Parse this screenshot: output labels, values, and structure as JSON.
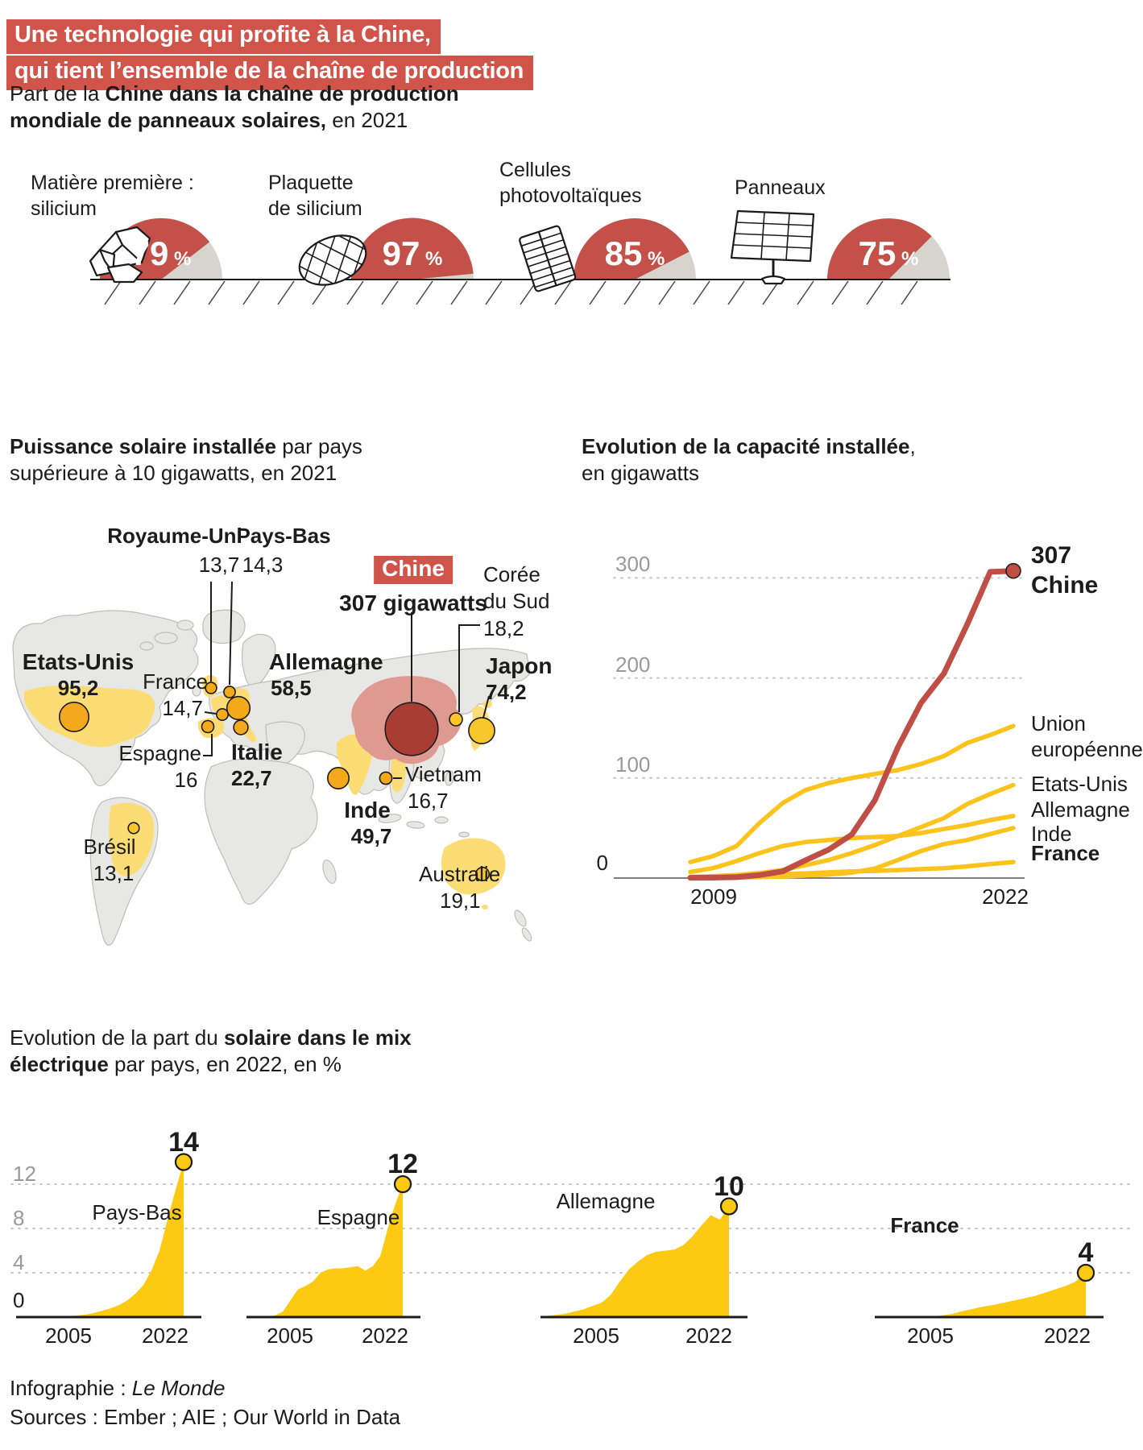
{
  "header": {
    "title_line1": "Une technologie qui profite à la Chine,",
    "title_line2": "qui tient l’ensemble de la chaîne de production"
  },
  "footer": {
    "credit_pre": "Infographie : ",
    "credit_name": "Le Monde",
    "sources": "Sources : Ember ; AIE ; Our World in Data"
  },
  "colors": {
    "brand_red": "#d0544a",
    "gauge_red": "#c45149",
    "gauge_gray": "#d7d4cd",
    "bubble_orange": "#f4a91c",
    "bubble_yellow": "#f8c62a",
    "china_dark_red": "#a73d33",
    "china_country": "#de9a90",
    "country_yellow": "#fcdc75",
    "line_yellow": "#fcc31d",
    "line_red": "#bf4e44",
    "area_yellow": "#fcca12",
    "tick_gray": "#999999"
  },
  "chart_data": [
    {
      "id": "china-production-share",
      "type": "gauge",
      "title": {
        "pre": "Part de la ",
        "bold": "Chine dans la chaîne de production mondiale de panneaux solaires,",
        "post": " en 2021"
      },
      "unit": "%",
      "items": [
        {
          "id": "silicium",
          "label_lines": [
            "Matière première :",
            "silicium"
          ],
          "value": 79,
          "icon": "silicon-chunks-icon"
        },
        {
          "id": "plaquette",
          "label_lines": [
            "Plaquette",
            "de silicium"
          ],
          "value": 97,
          "icon": "silicon-wafer-icon"
        },
        {
          "id": "cellules",
          "label_lines": [
            "Cellules",
            "photovoltaïques"
          ],
          "value": 85,
          "icon": "pv-cell-icon"
        },
        {
          "id": "panneaux",
          "label_lines": [
            "Panneaux"
          ],
          "value": 75,
          "icon": "solar-panel-icon"
        }
      ]
    },
    {
      "id": "installed-power-map",
      "type": "map-bubbles",
      "title": {
        "bold": "Puissance solaire installée",
        "rest": " par pays supérieure à 10 gigawatts, en 2021"
      },
      "unit": "gigawatts",
      "countries": [
        {
          "id": "chine",
          "name": "Chine",
          "value": 307,
          "value_label": "307 gigawatts",
          "emphasis": "china"
        },
        {
          "id": "etats-unis",
          "name": "Etats-Unis",
          "value": 95.2,
          "value_label": "95,2",
          "emphasis": "bold"
        },
        {
          "id": "japon",
          "name": "Japon",
          "value": 74.2,
          "value_label": "74,2",
          "emphasis": "bold"
        },
        {
          "id": "allemagne",
          "name": "Allemagne",
          "value": 58.5,
          "value_label": "58,5",
          "emphasis": "bold"
        },
        {
          "id": "inde",
          "name": "Inde",
          "value": 49.7,
          "value_label": "49,7",
          "emphasis": "bold"
        },
        {
          "id": "italie",
          "name": "Italie",
          "value": 22.7,
          "value_label": "22,7",
          "emphasis": "bold"
        },
        {
          "id": "australie",
          "name": "Australie",
          "value": 19.1,
          "value_label": "19,1",
          "emphasis": "plain"
        },
        {
          "id": "coree-du-sud",
          "name": "Corée du Sud",
          "name_lines": [
            "Corée",
            "du Sud"
          ],
          "value": 18.2,
          "value_label": "18,2",
          "emphasis": "plain"
        },
        {
          "id": "vietnam",
          "name": "Vietnam",
          "value": 16.7,
          "value_label": "16,7",
          "emphasis": "plain"
        },
        {
          "id": "espagne",
          "name": "Espagne",
          "value": 16,
          "value_label": "16",
          "emphasis": "plain"
        },
        {
          "id": "france",
          "name": "France",
          "value": 14.7,
          "value_label": "14,7",
          "emphasis": "plain"
        },
        {
          "id": "pays-bas",
          "name": "Pays-Bas",
          "value": 14.3,
          "value_label": "14,3",
          "emphasis": "semi"
        },
        {
          "id": "royaume-uni",
          "name": "Royaume-Uni",
          "value": 13.7,
          "value_label": "13,7",
          "emphasis": "semi"
        },
        {
          "id": "bresil",
          "name": "Brésil",
          "value": 13.1,
          "value_label": "13,1",
          "emphasis": "plain"
        }
      ]
    },
    {
      "id": "capacity-evolution",
      "type": "line",
      "title": {
        "bold": "Evolution de la capacité installée",
        "rest": ", en gigawatts"
      },
      "x_ticks": [
        "2009",
        "2022"
      ],
      "y_ticks": [
        "0",
        "100",
        "200",
        "300"
      ],
      "ylim": [
        0,
        320
      ],
      "years": [
        2008,
        2009,
        2010,
        2011,
        2012,
        2013,
        2014,
        2015,
        2016,
        2017,
        2018,
        2019,
        2020,
        2021,
        2022
      ],
      "series": [
        {
          "id": "union-europeenne",
          "label": "Union européenne",
          "label_lines": [
            "Union",
            "européenne"
          ],
          "color": "yellow",
          "values": [
            16,
            22,
            32,
            55,
            75,
            88,
            95,
            100,
            104,
            108,
            114,
            122,
            135,
            143,
            152
          ]
        },
        {
          "id": "etats-unis",
          "label": "Etats-Unis",
          "color": "yellow",
          "values": [
            1,
            2,
            3,
            5,
            8,
            13,
            18,
            25,
            33,
            42,
            51,
            60,
            74,
            84,
            93
          ]
        },
        {
          "id": "allemagne",
          "label": "Allemagne",
          "color": "yellow",
          "values": [
            6,
            10,
            17,
            25,
            32,
            36,
            38,
            40,
            41,
            42,
            45,
            49,
            53,
            58,
            62
          ]
        },
        {
          "id": "inde",
          "label": "Inde",
          "color": "yellow",
          "values": [
            0.1,
            0.2,
            0.5,
            1,
            1.5,
            2.5,
            3.5,
            5.5,
            9.5,
            18,
            27,
            34,
            38,
            44,
            50
          ]
        },
        {
          "id": "france",
          "label": "France",
          "color": "yellow",
          "bold": true,
          "values": [
            0.1,
            0.3,
            1,
            3,
            4,
            4.7,
            5.7,
            6.6,
            7.2,
            8,
            8.9,
            9.9,
            11.7,
            14,
            16
          ]
        },
        {
          "id": "chine",
          "label": "Chine",
          "end_label": "307",
          "color": "red",
          "bold": true,
          "end_dot": true,
          "values": [
            0.3,
            0.4,
            0.9,
            3,
            6.7,
            17.8,
            28.4,
            43.5,
            77.8,
            130.8,
            175,
            204.7,
            253.4,
            306,
            307
          ]
        }
      ]
    },
    {
      "id": "solar-mix-share",
      "type": "area",
      "title": {
        "pre": "Evolution de la part du ",
        "bold": "solaire dans le mix électrique",
        "post": " par pays, en 2022, en %"
      },
      "y_ticks": [
        "0",
        "4",
        "8",
        "12"
      ],
      "x_ticks": [
        "2005",
        "2022"
      ],
      "ylim": [
        0,
        14
      ],
      "years_start": 2003,
      "years_end": 2023,
      "charts": [
        {
          "id": "pays-bas",
          "label": "Pays-Bas",
          "end_value": 14,
          "values": [
            0,
            0,
            0.02,
            0.03,
            0.05,
            0.08,
            0.1,
            0.15,
            0.25,
            0.4,
            0.6,
            0.8,
            1.1,
            1.5,
            2.1,
            2.9,
            4.2,
            6,
            8.8,
            11.5,
            14
          ]
        },
        {
          "id": "espagne",
          "label": "Espagne",
          "end_value": 12,
          "values": [
            0,
            0.01,
            0.05,
            0.15,
            0.5,
            1.5,
            2.5,
            2.8,
            3.2,
            4,
            4.3,
            4.4,
            4.4,
            4.5,
            4.6,
            4.2,
            4.6,
            5.5,
            8,
            10.2,
            12
          ]
        },
        {
          "id": "allemagne",
          "label": "Allemagne",
          "end_value": 10,
          "values": [
            0.1,
            0.2,
            0.3,
            0.5,
            0.7,
            1,
            1.3,
            2,
            3.2,
            4.3,
            5,
            5.6,
            5.9,
            6,
            6.1,
            6.5,
            7.3,
            8.3,
            9.2,
            8.8,
            10
          ]
        },
        {
          "id": "france",
          "label": "France",
          "bold": true,
          "end_value": 4,
          "values": [
            0,
            0,
            0,
            0,
            0.02,
            0.05,
            0.15,
            0.3,
            0.55,
            0.75,
            0.95,
            1.1,
            1.3,
            1.5,
            1.7,
            1.9,
            2.2,
            2.5,
            2.8,
            3.2,
            4
          ]
        }
      ]
    }
  ]
}
